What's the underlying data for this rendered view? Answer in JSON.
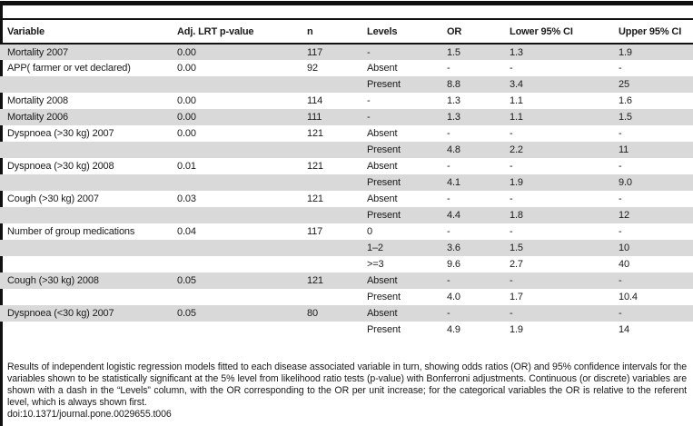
{
  "table": {
    "columns": [
      "Variable",
      "Adj. LRT p-value",
      "n",
      "Levels",
      "OR",
      "Lower 95% CI",
      "Upper 95% CI"
    ],
    "rows": [
      [
        "Mortality 2007",
        "0.00",
        "117",
        "-",
        "1.5",
        "1.3",
        "1.9"
      ],
      [
        "APP( farmer or vet declared)",
        "0.00",
        "92",
        "Absent",
        "-",
        "-",
        "-"
      ],
      [
        "",
        "",
        "",
        "Present",
        "8.8",
        "3.4",
        "25"
      ],
      [
        "Mortality 2008",
        "0.00",
        "114",
        "-",
        "1.3",
        "1.1",
        "1.6"
      ],
      [
        "Mortality 2006",
        "0.00",
        "111",
        "-",
        "1.3",
        "1.1",
        "1.5"
      ],
      [
        "Dyspnoea (>30 kg) 2007",
        "0.00",
        "121",
        "Absent",
        "-",
        "-",
        "-"
      ],
      [
        "",
        "",
        "",
        "Present",
        "4.8",
        "2.2",
        "11"
      ],
      [
        "Dyspnoea (>30 kg) 2008",
        "0.01",
        "121",
        "Absent",
        "-",
        "-",
        "-"
      ],
      [
        "",
        "",
        "",
        "Present",
        "4.1",
        "1.9",
        "9.0"
      ],
      [
        "Cough (>30 kg) 2007",
        "0.03",
        "121",
        "Absent",
        "-",
        "-",
        "-"
      ],
      [
        "",
        "",
        "",
        "Present",
        "4.4",
        "1.8",
        "12"
      ],
      [
        "Number of group medications",
        "0.04",
        "117",
        "0",
        "-",
        "-",
        "-"
      ],
      [
        "",
        "",
        "",
        "1–2",
        "3.6",
        "1.5",
        "10"
      ],
      [
        "",
        "",
        "",
        ">=3",
        "9.6",
        "2.7",
        "40"
      ],
      [
        "Cough (>30 kg) 2008",
        "0.05",
        "121",
        "Absent",
        "-",
        "-",
        "-"
      ],
      [
        "",
        "",
        "",
        "Present",
        "4.0",
        "1.7",
        "10.4"
      ],
      [
        "Dyspnoea (<30 kg) 2007",
        "0.05",
        "80",
        "Absent",
        "-",
        "-",
        "-"
      ],
      [
        "",
        "",
        "",
        "Present",
        "4.9",
        "1.9",
        "14"
      ]
    ]
  },
  "footnote": "Results of independent logistic regression models fitted to each disease associated variable in turn, showing odds ratios (OR) and 95% confidence intervals for the variables shown to be statistically significant at the 5% level from likelihood ratio tests (p-value) with Bonferroni adjustments. Continuous (or discrete) variables are shown with a dash in the “Levels” column, with the OR corresponding to the OR per unit increase; for the categorical variables the OR is relative to the referent level, which is always shown first.",
  "doi": "doi:10.1371/journal.pone.0029655.t006",
  "colors": {
    "row_shade": "#d9d9d9",
    "rule": "#111111",
    "text": "#1a1a1a"
  }
}
